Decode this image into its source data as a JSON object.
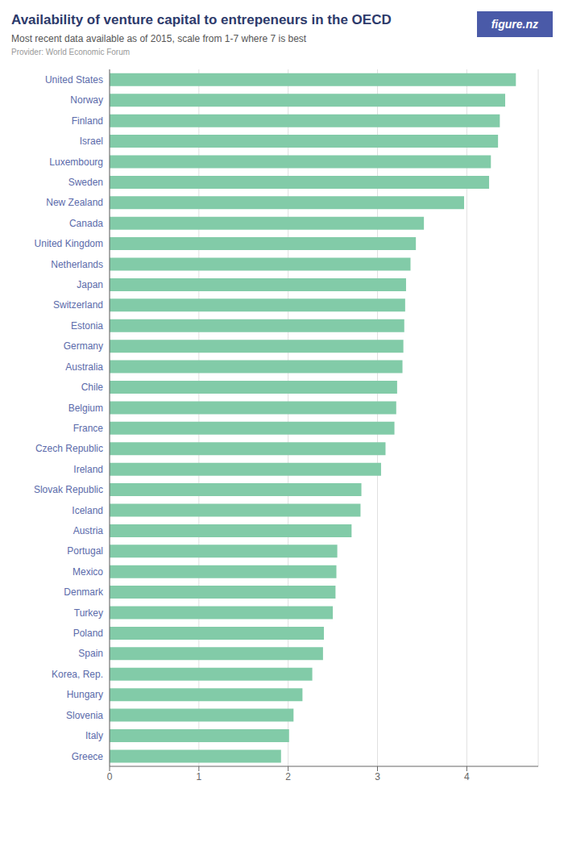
{
  "chart_data": {
    "type": "bar",
    "title": "Availability of venture capital to entrepeneurs in the OECD",
    "subtitle": "Most recent data available as of 2015, scale from 1-7 where 7 is best",
    "annotations": [
      "Provider: World Economic Forum",
      "figure.nz"
    ],
    "orientation": "horizontal",
    "color": "#82CBA8",
    "grid": true,
    "xlim": [
      0,
      4.8
    ],
    "xticks": [
      0,
      1,
      2,
      3,
      4
    ],
    "categories": [
      "United States",
      "Norway",
      "Finland",
      "Israel",
      "Luxembourg",
      "Sweden",
      "New Zealand",
      "Canada",
      "United Kingdom",
      "Netherlands",
      "Japan",
      "Switzerland",
      "Estonia",
      "Germany",
      "Australia",
      "Chile",
      "Belgium",
      "France",
      "Czech Republic",
      "Ireland",
      "Slovak Republic",
      "Iceland",
      "Austria",
      "Portugal",
      "Mexico",
      "Denmark",
      "Turkey",
      "Poland",
      "Spain",
      "Korea, Rep.",
      "Hungary",
      "Slovenia",
      "Italy",
      "Greece"
    ],
    "values": [
      4.55,
      4.43,
      4.37,
      4.35,
      4.27,
      4.25,
      3.97,
      3.52,
      3.43,
      3.37,
      3.32,
      3.31,
      3.3,
      3.29,
      3.28,
      3.22,
      3.21,
      3.19,
      3.09,
      3.04,
      2.82,
      2.81,
      2.71,
      2.55,
      2.54,
      2.53,
      2.5,
      2.4,
      2.39,
      2.27,
      2.16,
      2.06,
      2.01,
      1.92
    ]
  }
}
